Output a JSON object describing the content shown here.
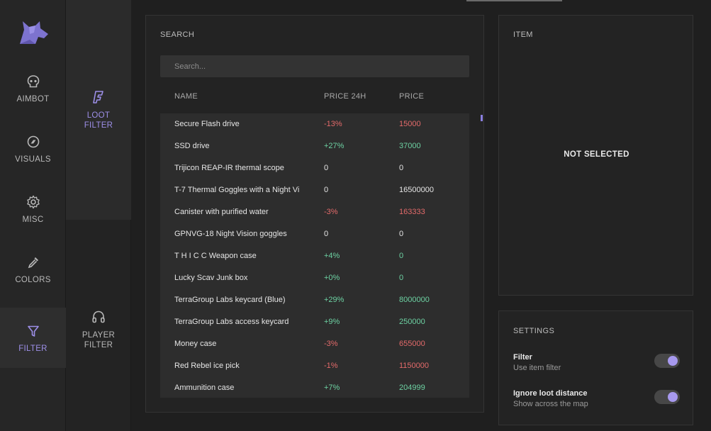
{
  "colors": {
    "accent": "#9d8fe8",
    "negative": "#e36a6a",
    "positive": "#6dd1a2"
  },
  "nav": {
    "items": [
      {
        "label": "AIMBOT",
        "icon": "skull-icon"
      },
      {
        "label": "VISUALS",
        "icon": "eye-icon"
      },
      {
        "label": "MISC",
        "icon": "gear-icon"
      },
      {
        "label": "COLORS",
        "icon": "dropper-icon"
      },
      {
        "label": "FILTER",
        "icon": "filter-icon",
        "active": true
      }
    ]
  },
  "subnav": {
    "items": [
      {
        "label_1": "LOOT",
        "label_2": "FILTER",
        "icon": "loot-icon",
        "active": true
      },
      {
        "label_1": "PLAYER",
        "label_2": "FILTER",
        "icon": "headphones-icon"
      }
    ]
  },
  "search": {
    "title": "SEARCH",
    "placeholder": "Search...",
    "columns": {
      "name": "NAME",
      "change": "PRICE 24H",
      "price": "PRICE"
    },
    "rows": [
      {
        "name": "Secure Flash drive",
        "change": "-13%",
        "price": "15000",
        "trend": "neg"
      },
      {
        "name": "SSD drive",
        "change": "+27%",
        "price": "37000",
        "trend": "pos"
      },
      {
        "name": "Trijicon REAP-IR thermal scope",
        "change": "0",
        "price": "0",
        "trend": "zero"
      },
      {
        "name": "T-7 Thermal Goggles with a Night Vi",
        "change": "0",
        "price": "16500000",
        "trend": "zero"
      },
      {
        "name": "Canister with purified water",
        "change": "-3%",
        "price": "163333",
        "trend": "neg"
      },
      {
        "name": "GPNVG-18 Night Vision goggles",
        "change": "0",
        "price": "0",
        "trend": "zero"
      },
      {
        "name": "T H I C C Weapon case",
        "change": "+4%",
        "price": "0",
        "trend": "pos"
      },
      {
        "name": "Lucky Scav Junk box",
        "change": "+0%",
        "price": "0",
        "trend": "pos"
      },
      {
        "name": "TerraGroup Labs keycard (Blue)",
        "change": "+29%",
        "price": "8000000",
        "trend": "pos"
      },
      {
        "name": "TerraGroup Labs access keycard",
        "change": "+9%",
        "price": "250000",
        "trend": "pos"
      },
      {
        "name": "Money case",
        "change": "-3%",
        "price": "655000",
        "trend": "neg"
      },
      {
        "name": "Red Rebel ice pick",
        "change": "-1%",
        "price": "1150000",
        "trend": "neg"
      },
      {
        "name": "Ammunition case",
        "change": "+7%",
        "price": "204999",
        "trend": "pos"
      }
    ]
  },
  "item": {
    "title": "ITEM",
    "empty_text": "NOT SELECTED"
  },
  "settings": {
    "title": "SETTINGS",
    "options": [
      {
        "title": "Filter",
        "desc": "Use item filter",
        "enabled": true
      },
      {
        "title": "Ignore loot distance",
        "desc": "Show across the map",
        "enabled": true
      }
    ]
  }
}
